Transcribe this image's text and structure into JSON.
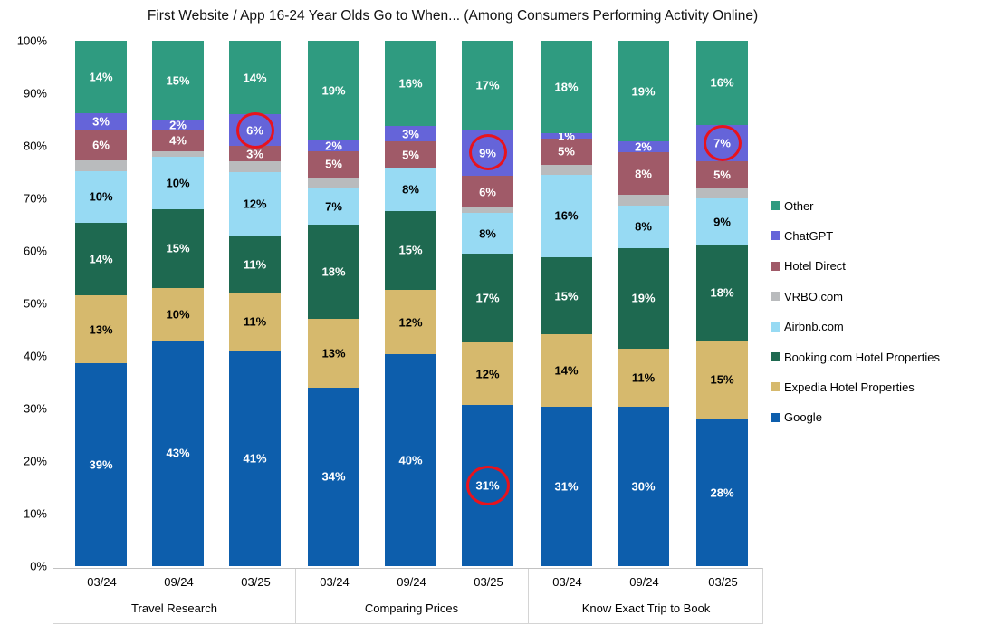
{
  "title": "First Website / App 16-24 Year Olds Go to When... (Among Consumers Performing Activity Online)",
  "colors": {
    "other": "#2F9B80",
    "chatgpt": "#6564D9",
    "hotel_direct": "#A05A68",
    "vrbo": "#B9BBBD",
    "airbnb": "#97DAF3",
    "booking": "#1E6950",
    "expedia": "#D6B96D",
    "google": "#0D5EAC",
    "annotation_circle": "#E8131D",
    "axis_line": "#C2C2C2"
  },
  "y_axis": {
    "ticks": [
      "0%",
      "10%",
      "20%",
      "30%",
      "40%",
      "50%",
      "60%",
      "70%",
      "80%",
      "90%",
      "100%"
    ],
    "min": 0,
    "max": 100
  },
  "legend": {
    "position": "right",
    "items": [
      {
        "label": "Other",
        "color_key": "other"
      },
      {
        "label": "ChatGPT",
        "color_key": "chatgpt"
      },
      {
        "label": "Hotel Direct",
        "color_key": "hotel_direct"
      },
      {
        "label": "VRBO.com",
        "color_key": "vrbo"
      },
      {
        "label": "Airbnb.com",
        "color_key": "airbnb"
      },
      {
        "label": "Booking.com Hotel Properties",
        "color_key": "booking"
      },
      {
        "label": "Expedia Hotel Properties",
        "color_key": "expedia"
      },
      {
        "label": "Google",
        "color_key": "google"
      }
    ]
  },
  "chart_data": {
    "type": "bar",
    "stacked": true,
    "units": "%",
    "ylim": [
      0,
      100
    ],
    "grid": false,
    "legend_position": "right",
    "title": "First Website / App 16-24 Year Olds Go to When... (Among Consumers Performing Activity Online)",
    "groups": [
      {
        "label": "Travel Research",
        "periods": [
          "03/24",
          "09/24",
          "03/25"
        ]
      },
      {
        "label": "Comparing Prices",
        "periods": [
          "03/24",
          "09/24",
          "03/25"
        ]
      },
      {
        "label": "Know Exact Trip to Book",
        "periods": [
          "03/24",
          "09/24",
          "03/25"
        ]
      }
    ],
    "series_order": "bottom_to_top",
    "series": [
      {
        "name": "Google",
        "color_key": "google",
        "label_color": "#FFFFFF",
        "labels_shown": true,
        "values": [
          39,
          43,
          41,
          34,
          40,
          31,
          31,
          30,
          28
        ]
      },
      {
        "name": "Expedia Hotel Properties",
        "color_key": "expedia",
        "label_color": "#000000",
        "labels_shown": true,
        "values": [
          13,
          10,
          11,
          13,
          12,
          12,
          14,
          11,
          15
        ]
      },
      {
        "name": "Booking.com Hotel Properties",
        "color_key": "booking",
        "label_color": "#FFFFFF",
        "labels_shown": true,
        "values": [
          14,
          15,
          11,
          18,
          15,
          17,
          15,
          19,
          18
        ]
      },
      {
        "name": "Airbnb.com",
        "color_key": "airbnb",
        "label_color": "#000000",
        "labels_shown": true,
        "values": [
          10,
          10,
          12,
          7,
          8,
          8,
          16,
          8,
          9
        ]
      },
      {
        "name": "VRBO.com",
        "color_key": "vrbo",
        "label_color": "#FFFFFF",
        "labels_shown": false,
        "values": [
          2,
          1,
          2,
          2,
          0,
          1,
          2,
          2,
          2
        ]
      },
      {
        "name": "Hotel Direct",
        "color_key": "hotel_direct",
        "label_color": "#FFFFFF",
        "labels_shown": true,
        "values": [
          6,
          4,
          3,
          5,
          5,
          6,
          5,
          8,
          5
        ]
      },
      {
        "name": "ChatGPT",
        "color_key": "chatgpt",
        "label_color": "#FFFFFF",
        "labels_shown": true,
        "values": [
          3,
          2,
          6,
          2,
          3,
          9,
          1,
          2,
          7
        ]
      },
      {
        "name": "Other",
        "color_key": "other",
        "label_color": "#FFFFFF",
        "labels_shown": true,
        "values": [
          14,
          15,
          14,
          19,
          16,
          17,
          18,
          19,
          16
        ]
      }
    ],
    "annotations": {
      "red_circles": [
        {
          "group": "Travel Research",
          "period": "03/25",
          "series": "ChatGPT",
          "value": 6
        },
        {
          "group": "Comparing Prices",
          "period": "03/25",
          "series": "ChatGPT",
          "value": 9
        },
        {
          "group": "Comparing Prices",
          "period": "03/25",
          "series": "Google",
          "value": 31
        },
        {
          "group": "Know Exact Trip to Book",
          "period": "03/25",
          "series": "ChatGPT",
          "value": 7
        }
      ]
    }
  }
}
